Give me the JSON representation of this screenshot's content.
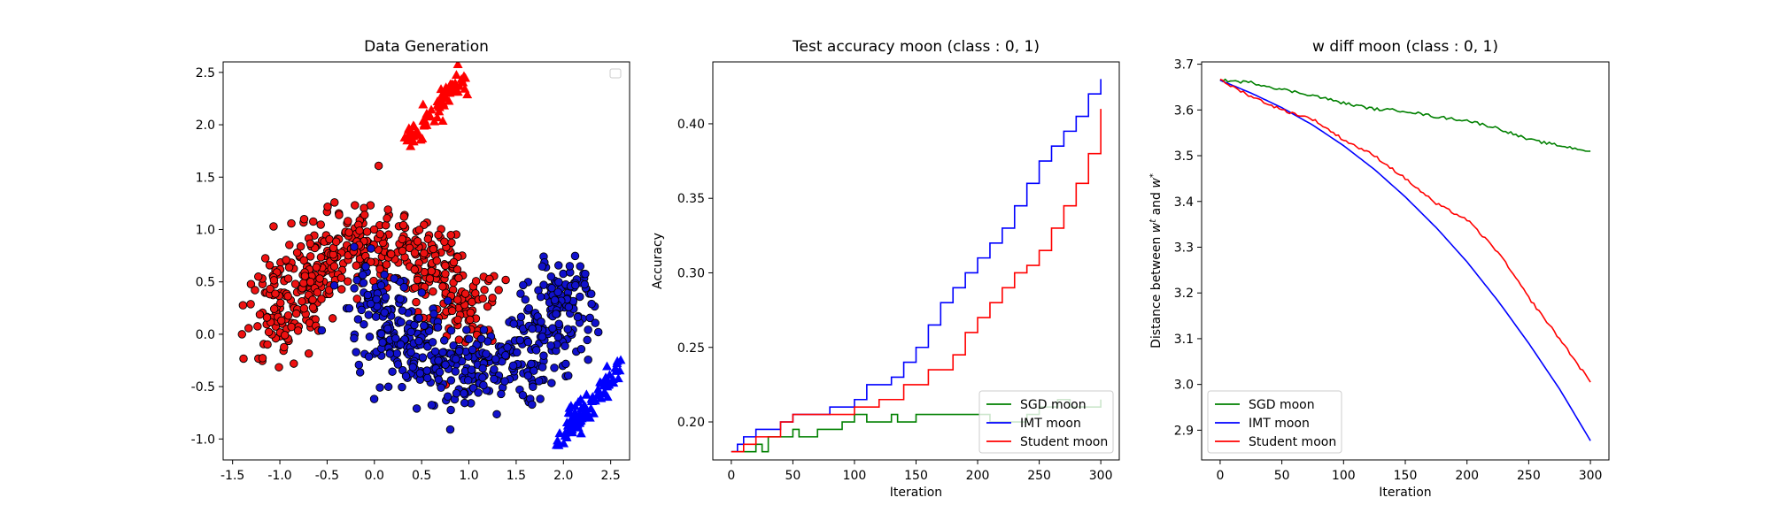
{
  "chart_data": [
    {
      "type": "scatter",
      "title": "Data Generation",
      "xlabel": "",
      "ylabel": "",
      "xlim": [
        -1.6,
        2.7
      ],
      "ylim": [
        -1.2,
        2.6
      ],
      "xticks": [
        -1.5,
        -1.0,
        -0.5,
        0.0,
        0.5,
        1.0,
        1.5,
        2.0,
        2.5
      ],
      "yticks": [
        -1.0,
        -0.5,
        0.0,
        0.5,
        1.0,
        1.5,
        2.0,
        2.5
      ],
      "legend": {
        "placement": "upper-right",
        "entries": []
      },
      "series": [
        {
          "marker": "circle",
          "color": "#ee1111",
          "edge": "#000000",
          "shape": "upper-moon",
          "center": [
            0.0,
            0.0
          ],
          "radius": 1.0,
          "count": 500
        },
        {
          "marker": "circle",
          "color": "#1111cc",
          "edge": "#000000",
          "shape": "lower-moon",
          "center": [
            1.0,
            0.5
          ],
          "radius": 1.0,
          "count": 500
        },
        {
          "marker": "triangle",
          "color": "#ff0000",
          "shape": "cluster",
          "x_range": [
            0.35,
            0.95
          ],
          "y_range": [
            1.85,
            2.45
          ],
          "count": 80
        },
        {
          "marker": "triangle",
          "color": "#0000ff",
          "shape": "cluster",
          "x_range": [
            1.95,
            2.6
          ],
          "y_range": [
            -1.05,
            -0.3
          ],
          "count": 100
        }
      ]
    },
    {
      "type": "line",
      "title": "Test accuracy moon (class : 0, 1)",
      "xlabel": "Iteration",
      "ylabel": "Accuracy",
      "xlim": [
        -15,
        315
      ],
      "ylim": [
        0.1745,
        0.4415
      ],
      "xticks": [
        0,
        50,
        100,
        150,
        200,
        250,
        300
      ],
      "yticks": [
        0.2,
        0.25,
        0.3,
        0.35,
        0.4
      ],
      "legend": {
        "placement": "lower-right"
      },
      "series": [
        {
          "name": "SGD moon",
          "color": "#008000",
          "x": [
            0,
            10,
            20,
            25,
            30,
            40,
            50,
            55,
            70,
            90,
            100,
            110,
            130,
            135,
            150,
            160,
            190,
            200,
            210,
            240,
            250,
            265,
            275,
            300
          ],
          "y": [
            0.18,
            0.18,
            0.185,
            0.18,
            0.19,
            0.19,
            0.195,
            0.19,
            0.195,
            0.2,
            0.205,
            0.2,
            0.205,
            0.2,
            0.205,
            0.205,
            0.205,
            0.205,
            0.2,
            0.205,
            0.21,
            0.215,
            0.21,
            0.215
          ]
        },
        {
          "name": "IMT moon",
          "color": "#0000ff",
          "x": [
            0,
            5,
            10,
            20,
            40,
            50,
            60,
            70,
            80,
            90,
            100,
            110,
            120,
            130,
            140,
            150,
            160,
            170,
            180,
            190,
            200,
            210,
            220,
            230,
            240,
            250,
            260,
            270,
            280,
            290,
            300
          ],
          "y": [
            0.18,
            0.185,
            0.19,
            0.195,
            0.2,
            0.205,
            0.205,
            0.205,
            0.21,
            0.21,
            0.215,
            0.225,
            0.225,
            0.23,
            0.24,
            0.25,
            0.265,
            0.28,
            0.29,
            0.3,
            0.31,
            0.32,
            0.33,
            0.345,
            0.36,
            0.375,
            0.385,
            0.395,
            0.405,
            0.42,
            0.43
          ]
        },
        {
          "name": "Student moon",
          "color": "#ff0000",
          "x": [
            0,
            10,
            20,
            40,
            50,
            60,
            80,
            100,
            120,
            140,
            160,
            180,
            190,
            200,
            210,
            220,
            230,
            240,
            250,
            260,
            270,
            280,
            290,
            300
          ],
          "y": [
            0.18,
            0.185,
            0.19,
            0.2,
            0.205,
            0.205,
            0.205,
            0.21,
            0.215,
            0.225,
            0.235,
            0.245,
            0.26,
            0.27,
            0.28,
            0.29,
            0.3,
            0.305,
            0.315,
            0.33,
            0.345,
            0.36,
            0.38,
            0.41
          ]
        }
      ]
    },
    {
      "type": "line",
      "title": "w diff moon (class : 0, 1)",
      "xlabel": "Iteration",
      "ylabel": "Distance between w^t and w^*",
      "ylabel_parts": {
        "before": "Distance between ",
        "w1": "w",
        "sup1": "t",
        "mid": " and ",
        "w2": "w",
        "sup2": "*"
      },
      "xlim": [
        -15,
        315
      ],
      "ylim": [
        2.835,
        3.705
      ],
      "xticks": [
        0,
        50,
        100,
        150,
        200,
        250,
        300
      ],
      "yticks": [
        2.9,
        3.0,
        3.1,
        3.2,
        3.3,
        3.4,
        3.5,
        3.6,
        3.7
      ],
      "legend": {
        "placement": "lower-left"
      },
      "series": [
        {
          "name": "SGD moon",
          "color": "#008000",
          "x": [
            0,
            25,
            50,
            75,
            100,
            125,
            150,
            175,
            200,
            225,
            250,
            275,
            300
          ],
          "y": [
            3.665,
            3.66,
            3.645,
            3.632,
            3.615,
            3.602,
            3.598,
            3.585,
            3.577,
            3.56,
            3.535,
            3.522,
            3.51
          ]
        },
        {
          "name": "IMT moon",
          "color": "#0000ff",
          "x": [
            0,
            25,
            50,
            75,
            100,
            125,
            150,
            175,
            200,
            225,
            250,
            275,
            300
          ],
          "y": [
            3.665,
            3.637,
            3.605,
            3.567,
            3.522,
            3.47,
            3.41,
            3.343,
            3.268,
            3.183,
            3.09,
            2.99,
            2.877
          ]
        },
        {
          "name": "Student moon",
          "color": "#ff0000",
          "x": [
            0,
            25,
            50,
            75,
            100,
            125,
            150,
            175,
            200,
            225,
            250,
            275,
            300
          ],
          "y": [
            3.665,
            3.63,
            3.6,
            3.58,
            3.535,
            3.5,
            3.45,
            3.395,
            3.36,
            3.29,
            3.19,
            3.1,
            3.005
          ]
        }
      ]
    }
  ]
}
